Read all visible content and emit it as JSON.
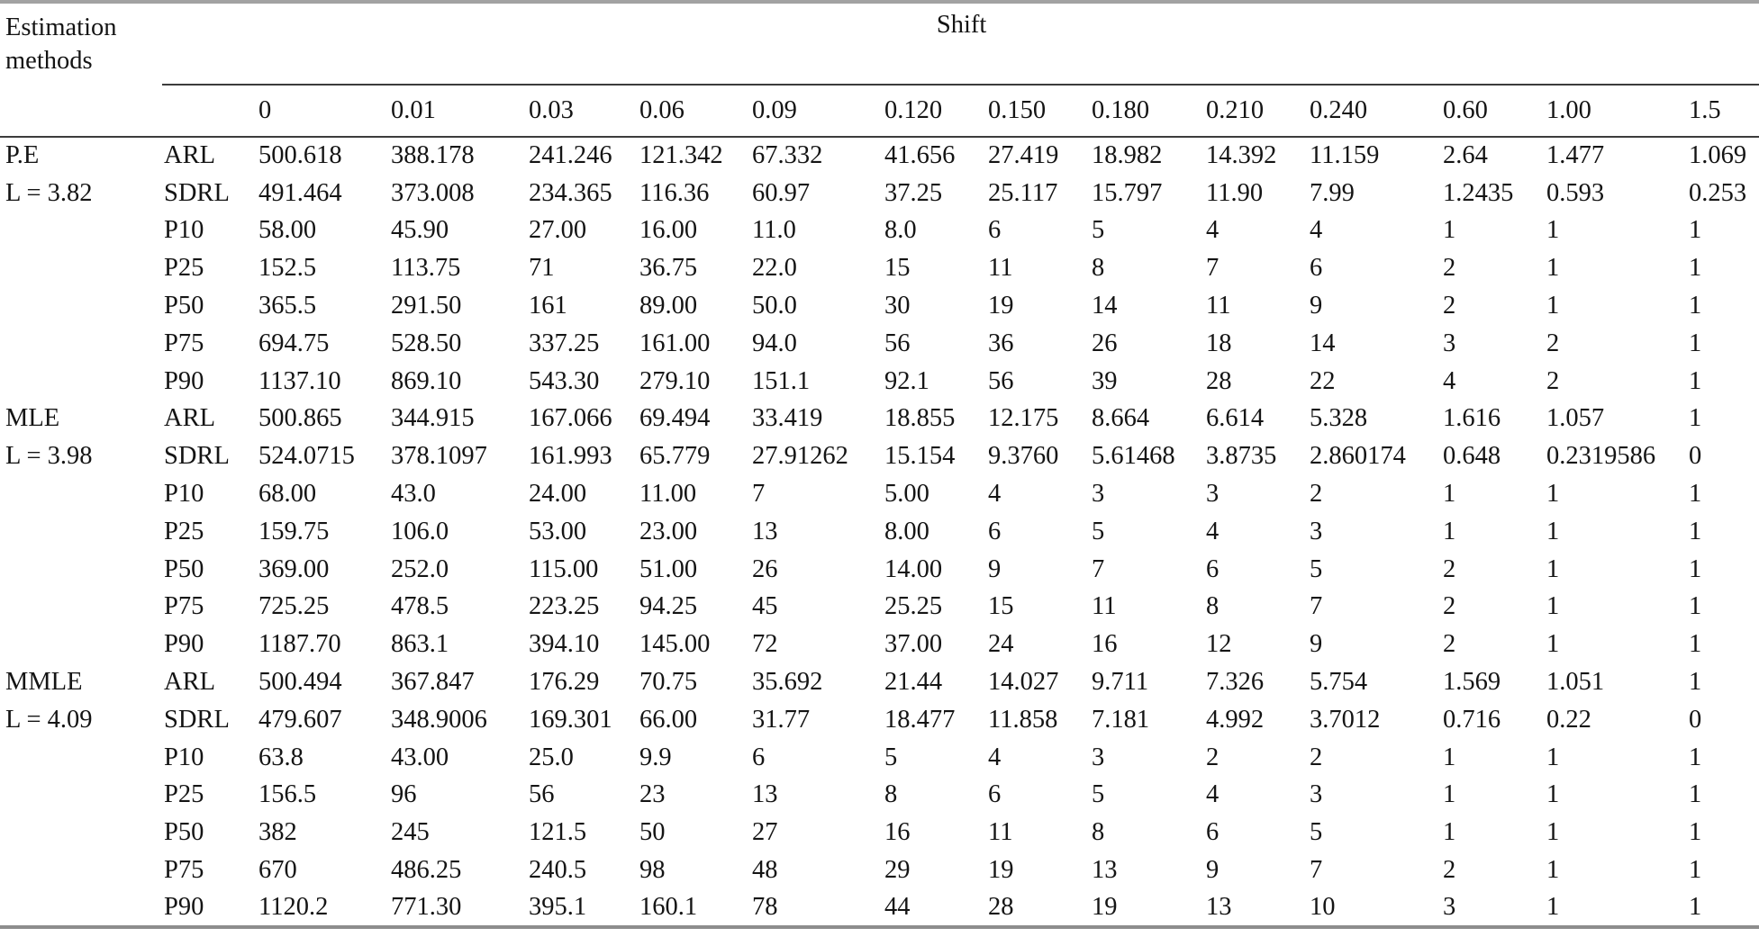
{
  "table": {
    "corner_header": "Estimation methods",
    "span_header": "Shift",
    "shift_values": [
      "0",
      "0.01",
      "0.03",
      "0.06",
      "0.09",
      "0.120",
      "0.150",
      "0.180",
      "0.210",
      "0.240",
      "0.60",
      "1.00",
      "1.5"
    ],
    "groups": [
      {
        "method": "P.E",
        "limit": "L = 3.82",
        "rows": [
          {
            "label": "ARL",
            "values": [
              "500.618",
              "388.178",
              "241.246",
              "121.342",
              "67.332",
              "41.656",
              "27.419",
              "18.982",
              "14.392",
              "11.159",
              "2.64",
              "1.477",
              "1.069"
            ]
          },
          {
            "label": "SDRL",
            "values": [
              "491.464",
              "373.008",
              "234.365",
              "116.36",
              "60.97",
              "37.25",
              "25.117",
              "15.797",
              "11.90",
              "7.99",
              "1.2435",
              "0.593",
              "0.253"
            ]
          },
          {
            "label": "P10",
            "values": [
              "58.00",
              "45.90",
              "27.00",
              "16.00",
              "11.0",
              "8.0",
              "6",
              "5",
              "4",
              "4",
              "1",
              "1",
              "1"
            ]
          },
          {
            "label": "P25",
            "values": [
              "152.5",
              "113.75",
              "71",
              "36.75",
              "22.0",
              "15",
              "11",
              "8",
              "7",
              "6",
              "2",
              "1",
              "1"
            ]
          },
          {
            "label": "P50",
            "values": [
              "365.5",
              "291.50",
              "161",
              "89.00",
              "50.0",
              "30",
              "19",
              "14",
              "11",
              "9",
              "2",
              "1",
              "1"
            ]
          },
          {
            "label": "P75",
            "values": [
              "694.75",
              "528.50",
              "337.25",
              "161.00",
              "94.0",
              "56",
              "36",
              "26",
              "18",
              "14",
              "3",
              "2",
              "1"
            ]
          },
          {
            "label": "P90",
            "values": [
              "1137.10",
              "869.10",
              "543.30",
              "279.10",
              "151.1",
              "92.1",
              "56",
              "39",
              "28",
              "22",
              "4",
              "2",
              "1"
            ]
          }
        ]
      },
      {
        "method": "MLE",
        "limit": "L = 3.98",
        "rows": [
          {
            "label": "ARL",
            "values": [
              "500.865",
              "344.915",
              "167.066",
              "69.494",
              "33.419",
              "18.855",
              "12.175",
              "8.664",
              "6.614",
              "5.328",
              "1.616",
              "1.057",
              "1"
            ]
          },
          {
            "label": "SDRL",
            "values": [
              "524.0715",
              "378.1097",
              "161.993",
              "65.779",
              "27.91262",
              "15.154",
              "9.3760",
              "5.61468",
              "3.8735",
              "2.860174",
              "0.648",
              "0.2319586",
              "0"
            ]
          },
          {
            "label": "P10",
            "values": [
              "68.00",
              "43.0",
              "24.00",
              "11.00",
              "7",
              "5.00",
              "4",
              "3",
              "3",
              "2",
              "1",
              "1",
              "1"
            ]
          },
          {
            "label": "P25",
            "values": [
              "159.75",
              "106.0",
              "53.00",
              "23.00",
              "13",
              "8.00",
              "6",
              "5",
              "4",
              "3",
              "1",
              "1",
              "1"
            ]
          },
          {
            "label": "P50",
            "values": [
              "369.00",
              "252.0",
              "115.00",
              "51.00",
              "26",
              "14.00",
              "9",
              "7",
              "6",
              "5",
              "2",
              "1",
              "1"
            ]
          },
          {
            "label": "P75",
            "values": [
              "725.25",
              "478.5",
              "223.25",
              "94.25",
              "45",
              "25.25",
              "15",
              "11",
              "8",
              "7",
              "2",
              "1",
              "1"
            ]
          },
          {
            "label": "P90",
            "values": [
              "1187.70",
              "863.1",
              "394.10",
              "145.00",
              "72",
              "37.00",
              "24",
              "16",
              "12",
              "9",
              "2",
              "1",
              "1"
            ]
          }
        ]
      },
      {
        "method": "MMLE",
        "limit": "L = 4.09",
        "rows": [
          {
            "label": "ARL",
            "values": [
              "500.494",
              "367.847",
              "176.29",
              "70.75",
              "35.692",
              "21.44",
              "14.027",
              "9.711",
              "7.326",
              "5.754",
              "1.569",
              "1.051",
              "1"
            ]
          },
          {
            "label": "SDRL",
            "values": [
              "479.607",
              "348.9006",
              "169.301",
              "66.00",
              "31.77",
              "18.477",
              "11.858",
              "7.181",
              "4.992",
              "3.7012",
              "0.716",
              "0.22",
              "0"
            ]
          },
          {
            "label": "P10",
            "values": [
              "63.8",
              "43.00",
              "25.0",
              "9.9",
              "6",
              "5",
              "4",
              "3",
              "2",
              "2",
              "1",
              "1",
              "1"
            ]
          },
          {
            "label": "P25",
            "values": [
              "156.5",
              "96",
              "56",
              "23",
              "13",
              "8",
              "6",
              "5",
              "4",
              "3",
              "1",
              "1",
              "1"
            ]
          },
          {
            "label": "P50",
            "values": [
              "382",
              "245",
              "121.5",
              "50",
              "27",
              "16",
              "11",
              "8",
              "6",
              "5",
              "1",
              "1",
              "1"
            ]
          },
          {
            "label": "P75",
            "values": [
              "670",
              "486.25",
              "240.5",
              "98",
              "48",
              "29",
              "19",
              "13",
              "9",
              "7",
              "2",
              "1",
              "1"
            ]
          },
          {
            "label": "P90",
            "values": [
              "1120.2",
              "771.30",
              "395.1",
              "160.1",
              "78",
              "44",
              "28",
              "19",
              "13",
              "10",
              "3",
              "1",
              "1"
            ]
          }
        ]
      }
    ]
  }
}
